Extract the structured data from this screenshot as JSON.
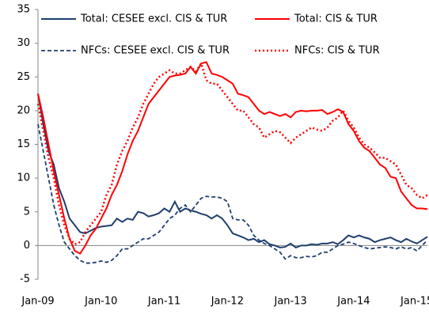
{
  "chart_data": {
    "type": "line",
    "categories": [
      "Jan-09",
      null,
      null,
      null,
      null,
      null,
      null,
      null,
      null,
      null,
      null,
      null,
      "Jan-10",
      null,
      null,
      null,
      null,
      null,
      null,
      null,
      null,
      null,
      null,
      null,
      "Jan-11",
      null,
      null,
      null,
      null,
      null,
      null,
      null,
      null,
      null,
      null,
      null,
      "Jan-12",
      null,
      null,
      null,
      null,
      null,
      null,
      null,
      null,
      null,
      null,
      null,
      "Jan-13",
      null,
      null,
      null,
      null,
      null,
      null,
      null,
      null,
      null,
      null,
      null,
      "Jan-14",
      null,
      null,
      null,
      null,
      null,
      null,
      null,
      null,
      null,
      null,
      null,
      "Jan-15",
      null,
      null
    ],
    "ylim": [
      -5,
      35
    ],
    "yticks": [
      -5,
      0,
      5,
      10,
      15,
      20,
      25,
      30,
      35
    ],
    "series": [
      {
        "name": "Total: CESEE excl. CIS & TUR",
        "color": "#1f3f6e",
        "style": "solid",
        "values": [
          22.5,
          18,
          14,
          12,
          8.5,
          6.5,
          4,
          3,
          2,
          1.8,
          2.2,
          2.6,
          2.8,
          2.9,
          3,
          4,
          3.5,
          4,
          3.8,
          5,
          4.8,
          4.3,
          4.5,
          4.8,
          5.5,
          5,
          6.5,
          5,
          5.5,
          5.2,
          5,
          4.7,
          4.5,
          4,
          4.5,
          4,
          3,
          1.8,
          1.5,
          1.2,
          0.8,
          1,
          0.5,
          0.8,
          0.2,
          0,
          -0.3,
          -0.2,
          0.3,
          -0.3,
          0,
          0,
          0.2,
          0.1,
          0.3,
          0.3,
          0.5,
          0.2,
          0.8,
          1.5,
          1.2,
          1.5,
          1.2,
          1,
          0.5,
          0.8,
          1,
          1.2,
          0.8,
          0.5,
          1,
          0.6,
          0.3,
          0.8,
          1.3
        ]
      },
      {
        "name": "Total: CIS & TUR",
        "color": "#ff0000",
        "style": "solid",
        "values": [
          22.5,
          19,
          15,
          11,
          7.5,
          4,
          1,
          -0.8,
          -1.2,
          0,
          1.5,
          2.5,
          4,
          5.5,
          7.5,
          9,
          11,
          13.5,
          15.5,
          17,
          19,
          21,
          22,
          23,
          24,
          25,
          25.2,
          25.3,
          25.5,
          26.5,
          25.5,
          27,
          27.2,
          25.5,
          25.3,
          25,
          24.5,
          24,
          22.5,
          22.3,
          22,
          21,
          20,
          19.5,
          19.8,
          19.5,
          19.2,
          19.5,
          19,
          19.8,
          20,
          19.9,
          20,
          20,
          20.1,
          19.5,
          19.8,
          20.2,
          19.8,
          18,
          17,
          15.5,
          14.5,
          14,
          13,
          12,
          11.5,
          10.2,
          10,
          8,
          7,
          6,
          5.5,
          5.5,
          5.4
        ]
      },
      {
        "name": "NFCs: CESEE excl. CIS & TUR",
        "color": "#1f3f6e",
        "style": "dashed",
        "values": [
          18,
          14,
          10,
          6,
          3,
          0.5,
          -0.5,
          -1.5,
          -2.2,
          -2.6,
          -2.6,
          -2.5,
          -2.3,
          -2.5,
          -2.2,
          -1.5,
          -0.5,
          -0.5,
          0,
          0.5,
          1,
          1,
          1.5,
          2,
          3,
          4,
          4.5,
          5.5,
          6,
          5,
          6,
          7,
          7.3,
          7.2,
          7.2,
          7,
          6.5,
          4,
          3.8,
          3.8,
          3,
          1.5,
          0.8,
          0.3,
          0,
          -0.5,
          -1,
          -2,
          -1.5,
          -1.8,
          -1.8,
          -1.6,
          -1.7,
          -1.5,
          -1,
          -1,
          -0.5,
          0,
          0.2,
          0.5,
          0.3,
          0,
          -0.3,
          -0.5,
          -0.4,
          -0.3,
          -0.2,
          -0.3,
          -0.5,
          -0.2,
          -0.5,
          -0.3,
          -0.8,
          0,
          0.8
        ]
      },
      {
        "name": "NFCs: CIS & TUR",
        "color": "#ff0000",
        "style": "dotted",
        "values": [
          21,
          17,
          13,
          10,
          6,
          3,
          1,
          0.2,
          0.5,
          2,
          3,
          4,
          5,
          7.5,
          9,
          12,
          14,
          15.5,
          17.5,
          19,
          21,
          22.5,
          24,
          25,
          25.5,
          26,
          25.5,
          25.5,
          26,
          26.5,
          25.8,
          27,
          24.5,
          24,
          24,
          23,
          22,
          21,
          20,
          20,
          19,
          18,
          17.5,
          16,
          16.5,
          17,
          16.8,
          16,
          15.2,
          16,
          16.5,
          17,
          17.5,
          17.2,
          17,
          17.5,
          18.5,
          19,
          20,
          18.5,
          17.5,
          16,
          15,
          14.5,
          13.8,
          13,
          13,
          12.5,
          12,
          10.5,
          9,
          8.5,
          7.5,
          7,
          7.5
        ]
      }
    ]
  }
}
